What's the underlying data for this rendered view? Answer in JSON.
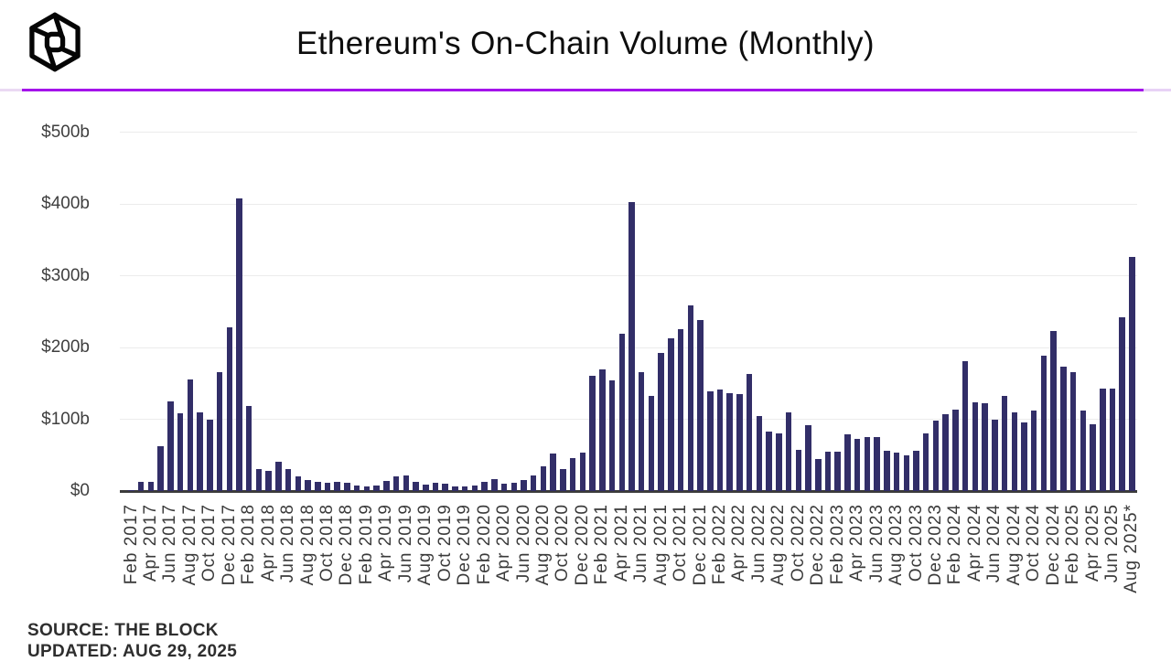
{
  "header": {
    "title": "Ethereum's On-Chain Volume (Monthly)",
    "logo": "the-block-logo"
  },
  "footer": {
    "source": "SOURCE: THE BLOCK",
    "updated": "UPDATED: AUG 29, 2025"
  },
  "chart_data": {
    "type": "bar",
    "title": "Ethereum's On-Chain Volume (Monthly)",
    "unit": "USD billions",
    "ylabel_ticks": [
      "$0",
      "$100b",
      "$200b",
      "$300b",
      "$400b",
      "$500b"
    ],
    "ytick_values": [
      0,
      100,
      200,
      300,
      400,
      500
    ],
    "ylim": [
      0,
      500
    ],
    "grid": true,
    "bar_color": "#322e68",
    "accent_line_color": "#a413ea",
    "x_tick_every": 2,
    "categories": [
      "Feb 2017",
      "Mar 2017",
      "Apr 2017",
      "May 2017",
      "Jun 2017",
      "Jul 2017",
      "Aug 2017",
      "Sep 2017",
      "Oct 2017",
      "Nov 2017",
      "Dec 2017",
      "Jan 2018",
      "Feb 2018",
      "Mar 2018",
      "Apr 2018",
      "May 2018",
      "Jun 2018",
      "Jul 2018",
      "Aug 2018",
      "Sep 2018",
      "Oct 2018",
      "Nov 2018",
      "Dec 2018",
      "Jan 2019",
      "Feb 2019",
      "Mar 2019",
      "Apr 2019",
      "May 2019",
      "Jun 2019",
      "Jul 2019",
      "Aug 2019",
      "Sep 2019",
      "Oct 2019",
      "Nov 2019",
      "Dec 2019",
      "Jan 2020",
      "Feb 2020",
      "Mar 2020",
      "Apr 2020",
      "May 2020",
      "Jun 2020",
      "Jul 2020",
      "Aug 2020",
      "Sep 2020",
      "Oct 2020",
      "Nov 2020",
      "Dec 2020",
      "Jan 2021",
      "Feb 2021",
      "Mar 2021",
      "Apr 2021",
      "May 2021",
      "Jun 2021",
      "Jul 2021",
      "Aug 2021",
      "Sep 2021",
      "Oct 2021",
      "Nov 2021",
      "Dec 2021",
      "Jan 2022",
      "Feb 2022",
      "Mar 2022",
      "Apr 2022",
      "May 2022",
      "Jun 2022",
      "Jul 2022",
      "Aug 2022",
      "Sep 2022",
      "Oct 2022",
      "Nov 2022",
      "Dec 2022",
      "Jan 2023",
      "Feb 2023",
      "Mar 2023",
      "Apr 2023",
      "May 2023",
      "Jun 2023",
      "Jul 2023",
      "Aug 2023",
      "Sep 2023",
      "Oct 2023",
      "Nov 2023",
      "Dec 2023",
      "Jan 2024",
      "Feb 2024",
      "Mar 2024",
      "Apr 2024",
      "May 2024",
      "Jun 2024",
      "Jul 2024",
      "Aug 2024",
      "Sep 2024",
      "Oct 2024",
      "Nov 2024",
      "Dec 2024",
      "Jan 2025",
      "Feb 2025",
      "Mar 2025",
      "Apr 2025",
      "May 2025",
      "Jun 2025",
      "Jul 2025",
      "Aug 2025*"
    ],
    "values": [
      1,
      13,
      13,
      62,
      125,
      108,
      156,
      109,
      100,
      166,
      228,
      408,
      118,
      30,
      28,
      41,
      30,
      21,
      15,
      13,
      11,
      13,
      12,
      8,
      7,
      8,
      14,
      21,
      22,
      13,
      9,
      12,
      10,
      7,
      7,
      8,
      13,
      16,
      10,
      12,
      15,
      22,
      35,
      52,
      30,
      46,
      54,
      160,
      169,
      154,
      219,
      402,
      166,
      132,
      192,
      213,
      226,
      258,
      238,
      139,
      141,
      136,
      135,
      163,
      104,
      83,
      80,
      109,
      57,
      92,
      45,
      55,
      55,
      79,
      73,
      75,
      75,
      56,
      54,
      50,
      56,
      80,
      98,
      107,
      114,
      181,
      124,
      122,
      99,
      133,
      110,
      95,
      112,
      188,
      223,
      173,
      165,
      112,
      93,
      143,
      143,
      242,
      326
    ]
  }
}
